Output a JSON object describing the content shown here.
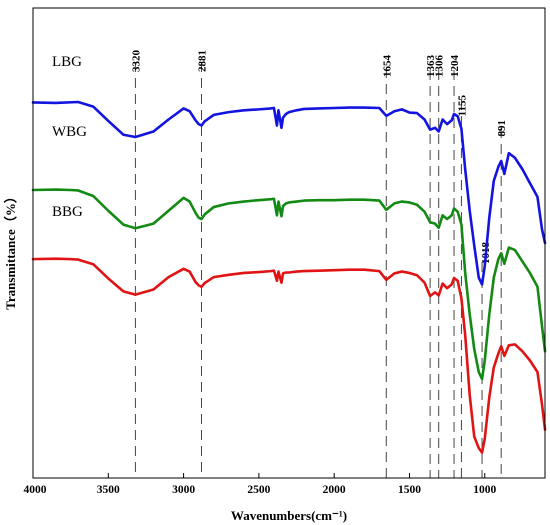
{
  "chart_data": {
    "type": "line",
    "xlabel": "Wavenumbers(cm⁻¹)",
    "ylabel": "Transmittance（%）",
    "xlim": [
      4000,
      600
    ],
    "x_reversed": true,
    "x_ticks": [
      "4000",
      "3500",
      "3000",
      "2500",
      "2000",
      "1500",
      "1000"
    ],
    "y_ticks_shown": false,
    "grid": false,
    "legend": "inline-left",
    "peaks": [
      {
        "label": "3320",
        "x": 3320
      },
      {
        "label": "2881",
        "x": 2881
      },
      {
        "label": "1654",
        "x": 1654
      },
      {
        "label": "1363",
        "x": 1363
      },
      {
        "label": "1306",
        "x": 1306
      },
      {
        "label": "1204",
        "x": 1204
      },
      {
        "label": "1155",
        "x": 1155
      },
      {
        "label": "1018",
        "x": 1018
      },
      {
        "label": "891",
        "x": 891
      }
    ],
    "series": [
      {
        "name": "LBG",
        "color": "#1414e0",
        "x": [
          4000,
          3850,
          3700,
          3600,
          3500,
          3400,
          3320,
          3200,
          3100,
          3000,
          2960,
          2920,
          2900,
          2881,
          2860,
          2800,
          2700,
          2600,
          2500,
          2420,
          2400,
          2380,
          2370,
          2350,
          2340,
          2320,
          2300,
          2250,
          2200,
          2100,
          2000,
          1900,
          1800,
          1700,
          1654,
          1600,
          1550,
          1500,
          1450,
          1400,
          1363,
          1330,
          1306,
          1280,
          1250,
          1220,
          1204,
          1180,
          1155,
          1130,
          1100,
          1070,
          1040,
          1018,
          1000,
          970,
          940,
          910,
          891,
          870,
          840,
          800,
          750,
          700,
          650,
          620,
          600
        ],
        "y": [
          75.5,
          75.4,
          75.6,
          74.6,
          71.5,
          68.5,
          68.0,
          69.2,
          71.8,
          74.2,
          73.6,
          71.6,
          70.8,
          70.5,
          71.4,
          72.8,
          73.4,
          73.8,
          74.0,
          74.2,
          74.3,
          70.5,
          73.8,
          70.0,
          72.2,
          73.0,
          73.4,
          73.8,
          74.1,
          74.2,
          74.3,
          74.4,
          74.4,
          74.3,
          72.6,
          73.6,
          74.0,
          73.3,
          73.2,
          71.8,
          69.6,
          70.0,
          69.2,
          71.8,
          70.8,
          71.6,
          73.0,
          72.5,
          69.8,
          61.0,
          52.0,
          44.5,
          37.5,
          36.0,
          40.0,
          50.5,
          58.5,
          61.5,
          62.8,
          60.0,
          64.5,
          63.5,
          61.0,
          58.0,
          55.0,
          48.0,
          45.0
        ]
      },
      {
        "name": "WBG",
        "color": "#138a13",
        "x": [
          4000,
          3850,
          3750,
          3700,
          3600,
          3500,
          3400,
          3320,
          3200,
          3100,
          3000,
          2960,
          2920,
          2900,
          2881,
          2860,
          2800,
          2700,
          2600,
          2500,
          2420,
          2400,
          2380,
          2370,
          2350,
          2340,
          2320,
          2300,
          2250,
          2200,
          2100,
          2000,
          1900,
          1800,
          1700,
          1654,
          1600,
          1550,
          1500,
          1450,
          1400,
          1363,
          1330,
          1306,
          1280,
          1250,
          1220,
          1204,
          1180,
          1155,
          1130,
          1100,
          1070,
          1040,
          1018,
          1000,
          970,
          940,
          910,
          891,
          870,
          840,
          800,
          750,
          700,
          650,
          620,
          600
        ],
        "y": [
          56.5,
          56.6,
          56.5,
          56.4,
          55.2,
          52.0,
          49.0,
          48.2,
          49.2,
          52.0,
          54.8,
          54.0,
          51.5,
          50.5,
          50.2,
          51.2,
          52.8,
          53.6,
          54.0,
          54.3,
          54.5,
          54.6,
          51.0,
          54.0,
          50.8,
          53.0,
          53.6,
          53.8,
          54.0,
          54.2,
          54.3,
          54.3,
          54.4,
          54.4,
          54.2,
          52.2,
          53.6,
          54.0,
          53.8,
          53.3,
          51.8,
          49.5,
          49.2,
          48.3,
          51.0,
          50.2,
          51.0,
          52.5,
          51.8,
          49.0,
          38.5,
          29.5,
          22.0,
          17.0,
          15.5,
          19.5,
          29.5,
          37.5,
          41.5,
          42.8,
          40.5,
          44.0,
          43.5,
          41.0,
          38.5,
          35.5,
          27.0,
          21.5
        ]
      },
      {
        "name": "BBG",
        "color": "#e01414",
        "x": [
          4000,
          3850,
          3750,
          3700,
          3600,
          3500,
          3400,
          3320,
          3200,
          3100,
          3000,
          2960,
          2920,
          2900,
          2881,
          2860,
          2800,
          2700,
          2600,
          2500,
          2420,
          2400,
          2380,
          2370,
          2350,
          2340,
          2320,
          2300,
          2250,
          2200,
          2100,
          2000,
          1900,
          1800,
          1700,
          1654,
          1600,
          1550,
          1500,
          1450,
          1400,
          1363,
          1330,
          1306,
          1280,
          1250,
          1220,
          1204,
          1180,
          1155,
          1130,
          1100,
          1070,
          1040,
          1018,
          1000,
          970,
          940,
          910,
          891,
          870,
          840,
          800,
          750,
          700,
          650,
          620,
          600
        ],
        "y": [
          41.5,
          41.6,
          41.5,
          41.4,
          40.4,
          37.3,
          34.5,
          33.8,
          34.9,
          37.6,
          39.4,
          38.8,
          36.5,
          35.8,
          35.5,
          36.3,
          37.6,
          38.1,
          38.5,
          38.7,
          38.9,
          39.0,
          36.8,
          38.8,
          36.4,
          38.4,
          38.6,
          38.6,
          38.8,
          38.9,
          39.0,
          39.1,
          39.2,
          39.2,
          38.9,
          37.0,
          38.4,
          38.8,
          38.5,
          38.0,
          36.4,
          33.5,
          34.3,
          33.6,
          36.2,
          35.2,
          36.0,
          37.4,
          36.8,
          33.0,
          25.0,
          12.0,
          3.0,
          0.5,
          -0.5,
          2.5,
          11.5,
          18.0,
          21.0,
          22.6,
          20.5,
          22.8,
          23.0,
          21.5,
          19.5,
          17.0,
          10.0,
          4.5
        ]
      }
    ]
  }
}
